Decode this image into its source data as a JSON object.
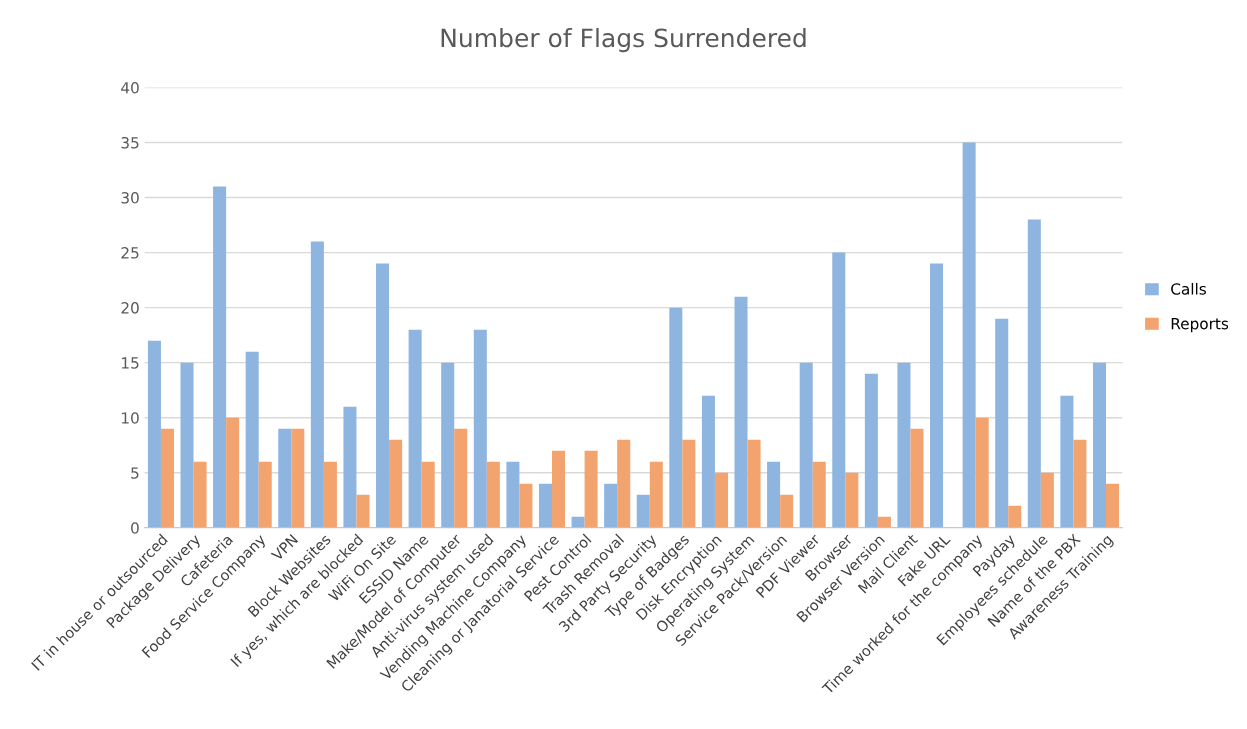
{
  "chart_data": {
    "type": "bar",
    "title": "Number of Flags Surrendered",
    "categories": [
      "IT in house or outsourced",
      "Package Delivery",
      "Cafeteria",
      "Food Service Company",
      "VPN",
      "Block Websites",
      "If yes, which are blocked",
      "WiFi On Site",
      "ESSID Name",
      "Make/Model of Computer",
      "Anti-virus system used",
      "Vending Machine Company",
      "Cleaning or Janatorial Service",
      "Pest Control",
      "Trash Removal",
      "3rd Party Security",
      "Type of Badges",
      "Disk Encryption",
      "Operating System",
      "Service Pack/Version",
      "PDF Viewer",
      "Browser",
      "Browser Version",
      "Mail Client",
      "Fake URL",
      "Time worked for the company",
      "Payday",
      "Employees schedule",
      "Name of the PBX",
      "Awareness Training"
    ],
    "series": [
      {
        "name": "Calls",
        "color": "#8db5e0",
        "values": [
          17,
          15,
          31,
          16,
          9,
          26,
          11,
          24,
          18,
          15,
          18,
          6,
          4,
          1,
          4,
          3,
          20,
          12,
          21,
          6,
          15,
          25,
          14,
          15,
          24,
          35,
          19,
          28,
          12,
          15
        ]
      },
      {
        "name": "Reports",
        "color": "#f3a46e",
        "values": [
          9,
          6,
          10,
          6,
          9,
          6,
          3,
          8,
          6,
          9,
          6,
          4,
          7,
          7,
          8,
          6,
          8,
          5,
          8,
          3,
          6,
          5,
          1,
          9,
          0,
          10,
          2,
          5,
          8,
          4
        ]
      }
    ],
    "ylim": [
      0,
      40
    ],
    "yticks": [
      0,
      5,
      10,
      15,
      20,
      25,
      30,
      35,
      40
    ],
    "grid": "y",
    "legend": "right"
  }
}
